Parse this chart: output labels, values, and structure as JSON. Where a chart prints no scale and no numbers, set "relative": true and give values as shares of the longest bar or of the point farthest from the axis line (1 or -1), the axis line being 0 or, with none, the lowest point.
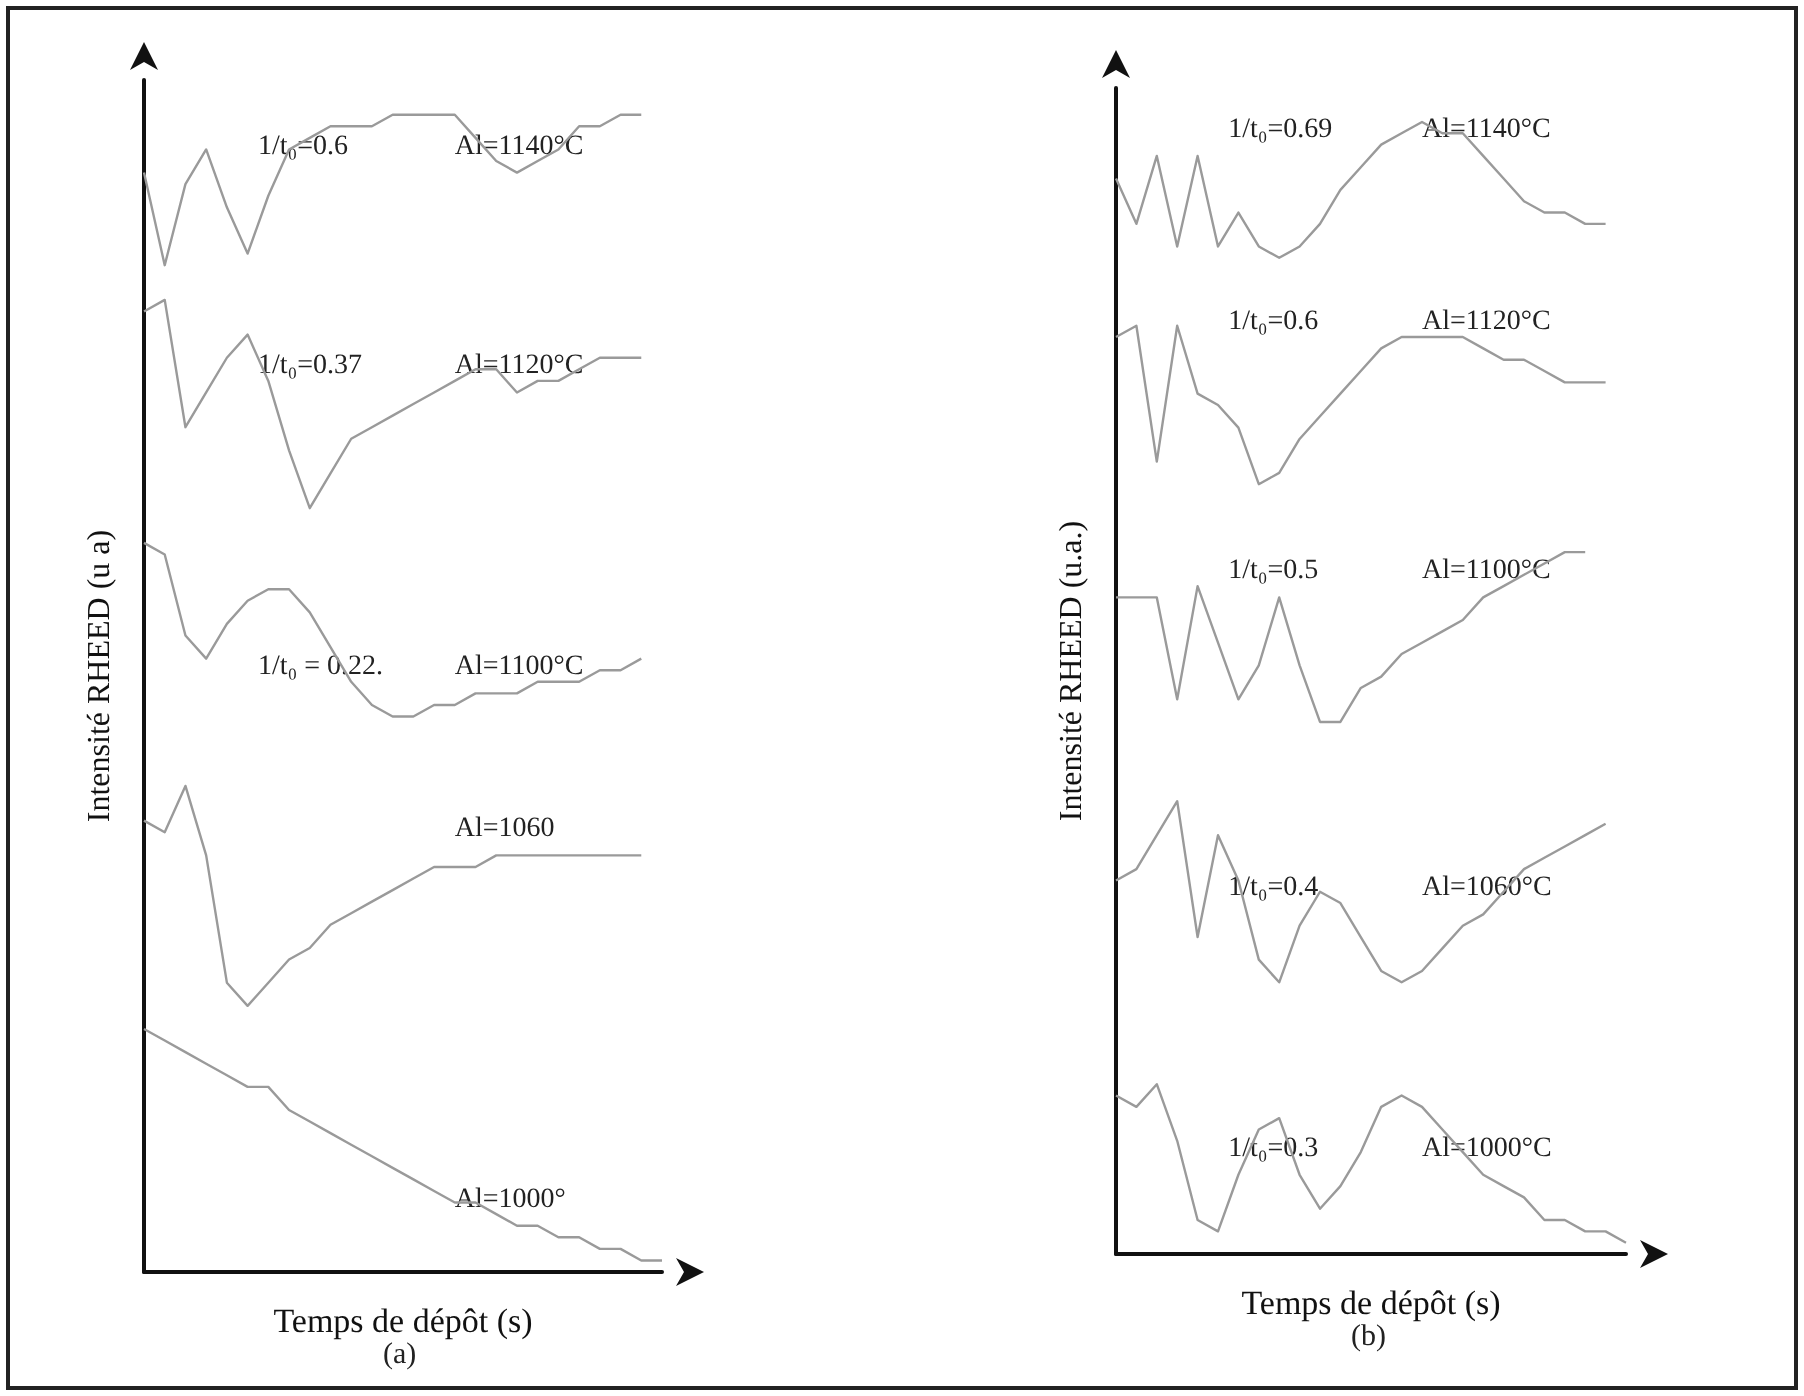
{
  "chart_data": [
    {
      "type": "line",
      "relative": true,
      "title": "(a)",
      "xlabel": "Temps de dépôt (s)",
      "ylabel": "Intensité RHEED (u a)",
      "categories": [
        null,
        null,
        null,
        null,
        null,
        null,
        null,
        null,
        null,
        null,
        null,
        null,
        null,
        null,
        null,
        null,
        null,
        null,
        null,
        null,
        null,
        null,
        null,
        null,
        null,
        null
      ],
      "annotations": [
        "1/t₀=0.6",
        "1/t₀=0.37",
        "1/t₀ = 0.22."
      ],
      "series": [
        {
          "name": "Al=1140°C",
          "color": "#9a9a9a",
          "values": [
            0.95,
            0.87,
            0.94,
            0.97,
            0.92,
            0.88,
            0.93,
            0.97,
            0.98,
            0.99,
            0.99,
            0.99,
            1.0,
            1.0,
            1.0,
            1.0,
            0.98,
            0.96,
            0.95,
            0.96,
            0.97,
            0.99,
            0.99,
            1.0,
            1.0,
            null
          ]
        },
        {
          "name": "Al=1120°C",
          "color": "#9a9a9a",
          "values": [
            0.83,
            0.84,
            0.73,
            0.76,
            0.79,
            0.81,
            0.77,
            0.71,
            0.66,
            0.69,
            0.72,
            0.73,
            0.74,
            0.75,
            0.76,
            0.77,
            0.78,
            0.78,
            0.76,
            0.77,
            0.77,
            0.78,
            0.79,
            0.79,
            0.79,
            null
          ]
        },
        {
          "name": "Al=1100°C",
          "color": "#9a9a9a",
          "values": [
            0.63,
            0.62,
            0.55,
            0.53,
            0.56,
            0.58,
            0.59,
            0.59,
            0.57,
            0.54,
            0.51,
            0.49,
            0.48,
            0.48,
            0.49,
            0.49,
            0.5,
            0.5,
            0.5,
            0.51,
            0.51,
            0.51,
            0.52,
            0.52,
            0.53,
            null
          ]
        },
        {
          "name": "Al=1060",
          "color": "#9a9a9a",
          "values": [
            0.39,
            0.38,
            0.42,
            0.36,
            0.25,
            0.23,
            0.25,
            0.27,
            0.28,
            0.3,
            0.31,
            0.32,
            0.33,
            0.34,
            0.35,
            0.35,
            0.35,
            0.36,
            0.36,
            0.36,
            0.36,
            0.36,
            0.36,
            0.36,
            0.36,
            null
          ]
        },
        {
          "name": "Al=1000°",
          "color": "#9a9a9a",
          "values": [
            0.21,
            0.2,
            0.19,
            0.18,
            0.17,
            0.16,
            0.16,
            0.14,
            0.13,
            0.12,
            0.11,
            0.1,
            0.09,
            0.08,
            0.07,
            0.06,
            0.06,
            0.05,
            0.04,
            0.04,
            0.03,
            0.03,
            0.02,
            0.02,
            0.01,
            0.01
          ]
        }
      ]
    },
    {
      "type": "line",
      "relative": true,
      "title": "(b)",
      "xlabel": "Temps de dépôt (s)",
      "ylabel": "Intensité RHEED (u.a.)",
      "categories": [
        null,
        null,
        null,
        null,
        null,
        null,
        null,
        null,
        null,
        null,
        null,
        null,
        null,
        null,
        null,
        null,
        null,
        null,
        null,
        null,
        null,
        null,
        null,
        null,
        null,
        null
      ],
      "annotations": [
        "1/t₀=0.69",
        "1/t₀=0.6",
        "1/t₀=0.5",
        "1/t₀=0.4",
        "1/t₀=0.3"
      ],
      "series": [
        {
          "name": "Al=1140°C",
          "color": "#9a9a9a",
          "values": [
            0.95,
            0.91,
            0.97,
            0.89,
            0.97,
            0.89,
            0.92,
            0.89,
            0.88,
            0.89,
            0.91,
            0.94,
            0.96,
            0.98,
            0.99,
            1.0,
            0.99,
            0.99,
            0.97,
            0.95,
            0.93,
            0.92,
            0.92,
            0.91,
            0.91,
            null
          ]
        },
        {
          "name": "Al=1120°C",
          "color": "#9a9a9a",
          "values": [
            0.81,
            0.82,
            0.7,
            0.82,
            0.76,
            0.75,
            0.73,
            0.68,
            0.69,
            0.72,
            0.74,
            0.76,
            0.78,
            0.8,
            0.81,
            0.81,
            0.81,
            0.81,
            0.8,
            0.79,
            0.79,
            0.78,
            0.77,
            0.77,
            0.77,
            null
          ]
        },
        {
          "name": "Al=1100°C",
          "color": "#9a9a9a",
          "values": [
            0.58,
            0.58,
            0.58,
            0.49,
            0.59,
            0.54,
            0.49,
            0.52,
            0.58,
            0.52,
            0.47,
            0.47,
            0.5,
            0.51,
            0.53,
            0.54,
            0.55,
            0.56,
            0.58,
            0.59,
            0.6,
            0.61,
            0.62,
            0.62,
            null,
            null
          ]
        },
        {
          "name": "Al=1060°C",
          "color": "#9a9a9a",
          "values": [
            0.33,
            0.34,
            0.37,
            0.4,
            0.28,
            0.37,
            0.33,
            0.26,
            0.24,
            0.29,
            0.32,
            0.31,
            0.28,
            0.25,
            0.24,
            0.25,
            0.27,
            0.29,
            0.3,
            0.32,
            0.34,
            0.35,
            0.36,
            0.37,
            0.38,
            null
          ]
        },
        {
          "name": "Al=1000°C",
          "color": "#9a9a9a",
          "values": [
            0.14,
            0.13,
            0.15,
            0.1,
            0.03,
            0.02,
            0.07,
            0.11,
            0.12,
            0.07,
            0.04,
            0.06,
            0.09,
            0.13,
            0.14,
            0.13,
            0.11,
            0.09,
            0.07,
            0.06,
            0.05,
            0.03,
            0.03,
            0.02,
            0.02,
            0.01
          ]
        }
      ]
    }
  ]
}
